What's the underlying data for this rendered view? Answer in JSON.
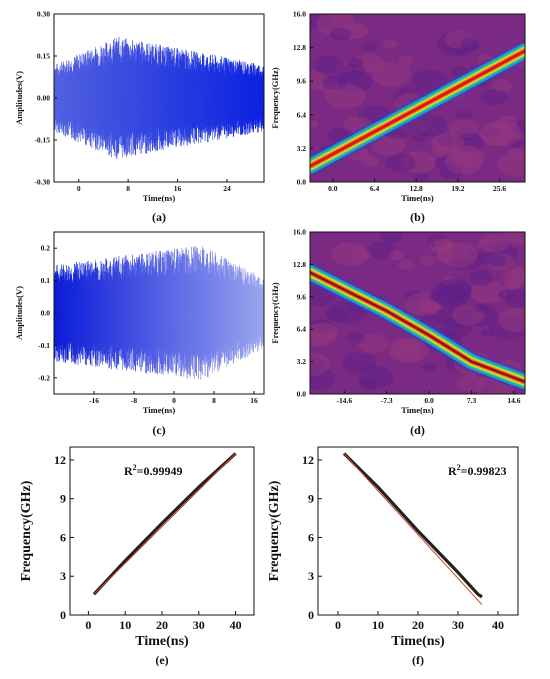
{
  "chart_data": [
    {
      "id": "a",
      "caption": "(a)",
      "type": "line",
      "xlabel": "Time(ns)",
      "ylabel": "Amplitudes(V)",
      "xticks": [
        "0",
        "8",
        "16",
        "24"
      ],
      "xtick_values": [
        0,
        8,
        16,
        24
      ],
      "yticks": [
        "-0.30",
        "-0.15",
        "0.00",
        "0.15",
        "0.30"
      ],
      "ytick_values": [
        -0.3,
        -0.15,
        0.0,
        0.15,
        0.3
      ],
      "xlim": [
        -4,
        30
      ],
      "ylim": [
        -0.3,
        0.3
      ],
      "signal": {
        "kind": "chirp-up",
        "envelope_start": 0.12,
        "envelope_peak": 0.22,
        "envelope_end": 0.12,
        "color": "#2030d0"
      }
    },
    {
      "id": "b",
      "caption": "(b)",
      "type": "heatmap",
      "xlabel": "Time(ns)",
      "ylabel": "Frequency(GHz)",
      "xticks": [
        "0.0",
        "6.4",
        "12.8",
        "19.2",
        "25.6"
      ],
      "xtick_values": [
        0.0,
        6.4,
        12.8,
        19.2,
        25.6
      ],
      "yticks": [
        "0.0",
        "3.2",
        "6.4",
        "9.6",
        "12.8",
        "16.0"
      ],
      "ytick_values": [
        0.0,
        3.2,
        6.4,
        9.6,
        12.8,
        16.0
      ],
      "xlim": [
        -3.5,
        29.5
      ],
      "ylim": [
        0,
        16
      ],
      "ridge": [
        [
          -3.5,
          1.5
        ],
        [
          29.5,
          12.5
        ]
      ],
      "background": "#7a2a82"
    },
    {
      "id": "c",
      "caption": "(c)",
      "type": "line",
      "xlabel": "Time(ns)",
      "ylabel": "Amplitudes(V)",
      "xticks": [
        "-16",
        "-8",
        "0",
        "8",
        "16"
      ],
      "xtick_values": [
        -16,
        -8,
        0,
        8,
        16
      ],
      "yticks": [
        "-0.2",
        "-0.1",
        "0.0",
        "0.1",
        "0.2"
      ],
      "ytick_values": [
        -0.2,
        -0.1,
        0.0,
        0.1,
        0.2
      ],
      "xlim": [
        -24,
        18
      ],
      "ylim": [
        -0.25,
        0.25
      ],
      "signal": {
        "kind": "chirp-down",
        "envelope_start": 0.15,
        "envelope_peak": 0.21,
        "envelope_end": 0.11,
        "color": "#2030d0"
      }
    },
    {
      "id": "d",
      "caption": "(d)",
      "type": "heatmap",
      "xlabel": "Time(ns)",
      "ylabel": "Frequency(GHz)",
      "xticks": [
        "-14.6",
        "-7.3",
        "0.0",
        "7.3",
        "14.6"
      ],
      "xtick_values": [
        -14.6,
        -7.3,
        0.0,
        7.3,
        14.6
      ],
      "yticks": [
        "0.0",
        "3.2",
        "6.4",
        "9.6",
        "12.8",
        "16.0"
      ],
      "ytick_values": [
        0.0,
        3.2,
        6.4,
        9.6,
        12.8,
        16.0
      ],
      "xlim": [
        -20.5,
        16.5
      ],
      "ylim": [
        0,
        16
      ],
      "ridge": [
        [
          -20.5,
          12.0
        ],
        [
          -7.3,
          8.2
        ],
        [
          0.0,
          5.8
        ],
        [
          7.3,
          3.2
        ],
        [
          16.5,
          1.2
        ]
      ],
      "background": "#7a2a82"
    },
    {
      "id": "e",
      "caption": "(e)",
      "type": "line",
      "xlabel": "Time(ns)",
      "ylabel": "Frequency(GHz)",
      "annotation": "R²=0.99949",
      "xticks": [
        "0",
        "10",
        "20",
        "30",
        "40"
      ],
      "xtick_values": [
        0,
        10,
        20,
        30,
        40
      ],
      "yticks": [
        "0",
        "3",
        "6",
        "9",
        "12"
      ],
      "ytick_values": [
        0,
        3,
        6,
        9,
        12
      ],
      "xlim": [
        -5,
        45
      ],
      "ylim": [
        0,
        13
      ],
      "series": [
        {
          "values": [
            [
              1.5,
              1.6
            ],
            [
              10,
              4.2
            ],
            [
              20,
              7.1
            ],
            [
              30,
              9.9
            ],
            [
              40,
              12.5
            ]
          ],
          "color": "#222222"
        },
        {
          "values": [
            [
              1.5,
              1.6
            ],
            [
              40,
              12.5
            ]
          ],
          "color": "#d04020"
        }
      ]
    },
    {
      "id": "f",
      "caption": "(f)",
      "type": "line",
      "xlabel": "Time(ns)",
      "ylabel": "Frequency(GHz)",
      "annotation": "R²=0.99823",
      "xticks": [
        "0",
        "10",
        "20",
        "30",
        "40"
      ],
      "xtick_values": [
        0,
        10,
        20,
        30,
        40
      ],
      "yticks": [
        "0",
        "3",
        "6",
        "9",
        "12"
      ],
      "ytick_values": [
        0,
        3,
        6,
        9,
        12
      ],
      "xlim": [
        -5,
        45
      ],
      "ylim": [
        0,
        13
      ],
      "series": [
        {
          "values": [
            [
              1.5,
              12.5
            ],
            [
              10,
              9.9
            ],
            [
              20,
              6.5
            ],
            [
              30,
              3.3
            ],
            [
              35,
              1.6
            ],
            [
              36,
              1.4
            ]
          ],
          "color": "#222222"
        },
        {
          "values": [
            [
              1.5,
              12.5
            ],
            [
              36,
              0.8
            ]
          ],
          "color": "#d04020"
        }
      ]
    }
  ]
}
